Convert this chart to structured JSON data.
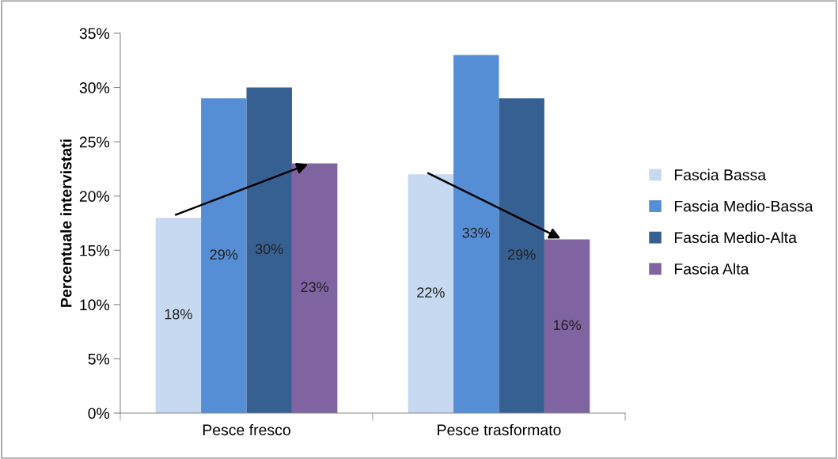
{
  "chart_data": {
    "type": "bar",
    "ylabel": "Percentuale intervistati",
    "categories": [
      "Pesce fresco",
      "Pesce trasformato"
    ],
    "series": [
      {
        "name": "Fascia Bassa",
        "color": "#c6d9f1",
        "values": [
          18,
          22
        ]
      },
      {
        "name": "Fascia Medio-Bassa",
        "color": "#558ed5",
        "values": [
          29,
          33
        ]
      },
      {
        "name": "Fascia Medio-Alta",
        "color": "#376092",
        "values": [
          30,
          29
        ]
      },
      {
        "name": "Fascia Alta",
        "color": "#8064a2",
        "values": [
          23,
          16
        ]
      }
    ],
    "ylim": [
      0,
      35
    ],
    "yticks": [
      {
        "value": 0,
        "label": "0%"
      },
      {
        "value": 5,
        "label": "5%"
      },
      {
        "value": 10,
        "label": "10%"
      },
      {
        "value": 15,
        "label": "15%"
      },
      {
        "value": 20,
        "label": "20%"
      },
      {
        "value": 25,
        "label": "25%"
      },
      {
        "value": 30,
        "label": "30%"
      },
      {
        "value": 35,
        "label": "35%"
      }
    ],
    "value_labels": [
      [
        "18%",
        "22%"
      ],
      [
        "29%",
        "33%"
      ],
      [
        "30%",
        "29%"
      ],
      [
        "23%",
        "16%"
      ]
    ],
    "grid": false,
    "legend": "right"
  }
}
